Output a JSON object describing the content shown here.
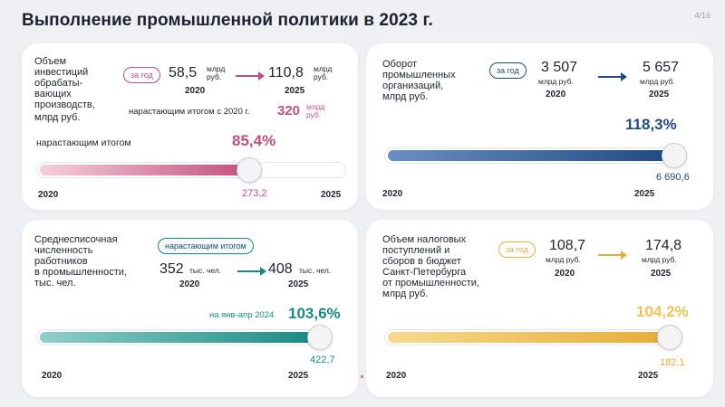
{
  "header": {
    "title": "Выполнение промышленной политики в 2023 г.",
    "page": "4/16"
  },
  "colors": {
    "pink": "#c2507e",
    "blue": "#1f4a80",
    "teal": "#188a84",
    "gold": "#e6ad35"
  },
  "card1": {
    "label": "Объем\nинвестиций\nобрабаты-\nвающих\nпроизводств,",
    "unit": "млрд руб.",
    "pill": "за год",
    "from_value": "58,5",
    "from_unit": "млрд\nруб.",
    "from_year": "2020",
    "to_value": "110,8",
    "to_unit": "млрд\nруб.",
    "to_year": "2025",
    "cum_label": "нарастающим итогом с 2020 г.",
    "cum_value": "320",
    "cum_unit": "млрд\nруб.",
    "bar_label": "нарастающим итогом",
    "percent": "85,4%",
    "percent_value": 85.4,
    "end_value": "273,2",
    "axis_start": "2020",
    "axis_end": "2025"
  },
  "card2": {
    "label": "Оборот\nпромышленных\nорганизаций,",
    "unit": "млрд руб.",
    "pill": "за год",
    "from_value": "3 507",
    "from_unit": "млрд руб.",
    "from_year": "2020",
    "to_value": "5 657",
    "to_unit": "млрд руб.",
    "to_year": "2025",
    "percent": "118,3%",
    "percent_value": 118.3,
    "end_value": "6 690,6",
    "axis_start": "2020",
    "axis_end": "2025"
  },
  "card3": {
    "label": "Среднесписочная\nчисленность\nработников\nв промышленности,",
    "unit": "тыс. чел.",
    "pill": "нарастающим итогом",
    "from_value": "352",
    "from_unit": "тыс. чел.",
    "from_year": "2020",
    "to_value": "408",
    "to_unit": "тыс. чел.",
    "to_year": "2025",
    "note": "на янв-апр 2024",
    "percent": "103,6%",
    "percent_value": 103.6,
    "end_value": "422,7",
    "axis_start": "2020",
    "axis_end": "2025"
  },
  "card4": {
    "label": "Объем налоговых\nпоступлений и\nсборов в бюджет\nСанкт-Петербурга\nот промышленности,",
    "unit": "млрд руб.",
    "pill": "за год",
    "from_value": "108,7",
    "from_unit": "млрд руб.",
    "from_year": "2020",
    "to_value": "174,8",
    "to_unit": "млрд руб.",
    "to_year": "2025",
    "percent": "104,2%",
    "percent_value": 104.2,
    "end_value": "182,1",
    "axis_start": "2020",
    "axis_end": "2025"
  }
}
